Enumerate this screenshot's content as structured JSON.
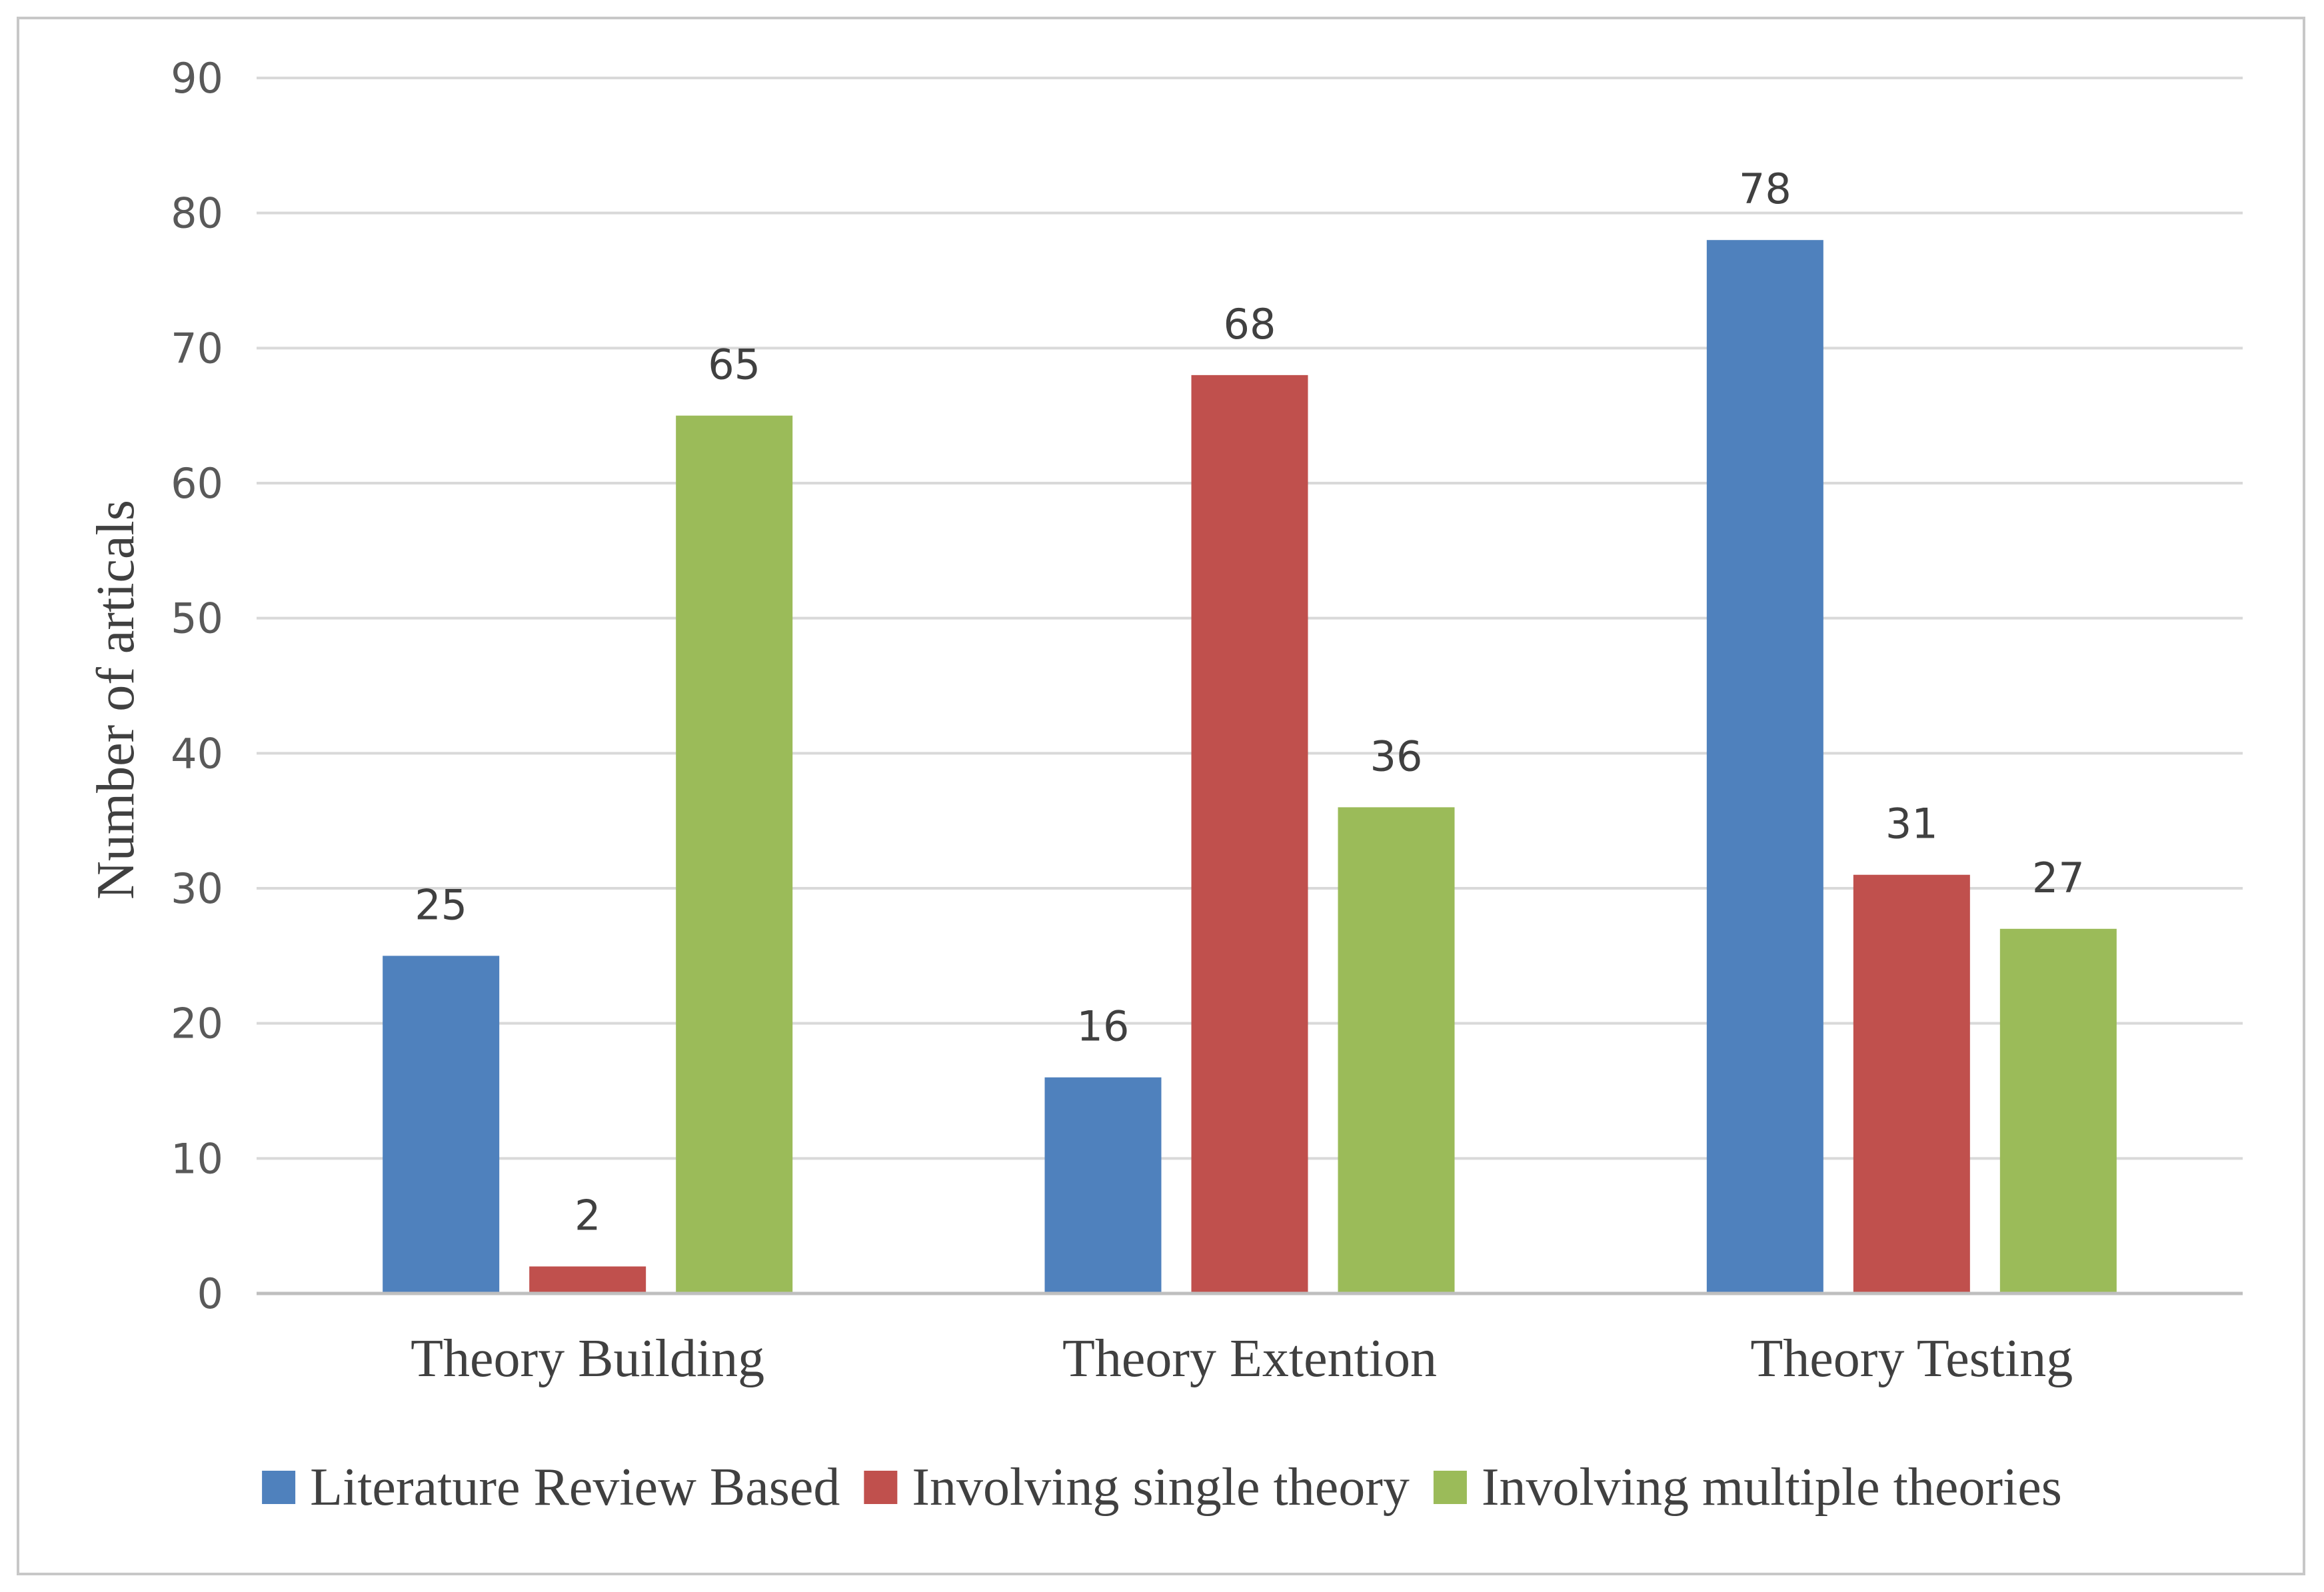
{
  "chart_data": {
    "type": "bar",
    "title": "",
    "xlabel": "",
    "ylabel": "Number of articals",
    "ylim": [
      0,
      90
    ],
    "ytick_step": 10,
    "grid": true,
    "legend_position": "bottom",
    "categories": [
      "Theory Building",
      "Theory Extention",
      "Theory Testing"
    ],
    "series": [
      {
        "name": "Literature Review Based",
        "color": "#4f81bd",
        "values": [
          25,
          16,
          78
        ]
      },
      {
        "name": "Involving single theory",
        "color": "#c0504d",
        "values": [
          2,
          68,
          31
        ]
      },
      {
        "name": "Involving multiple theories",
        "color": "#9bbb59",
        "values": [
          65,
          36,
          27
        ]
      }
    ]
  }
}
